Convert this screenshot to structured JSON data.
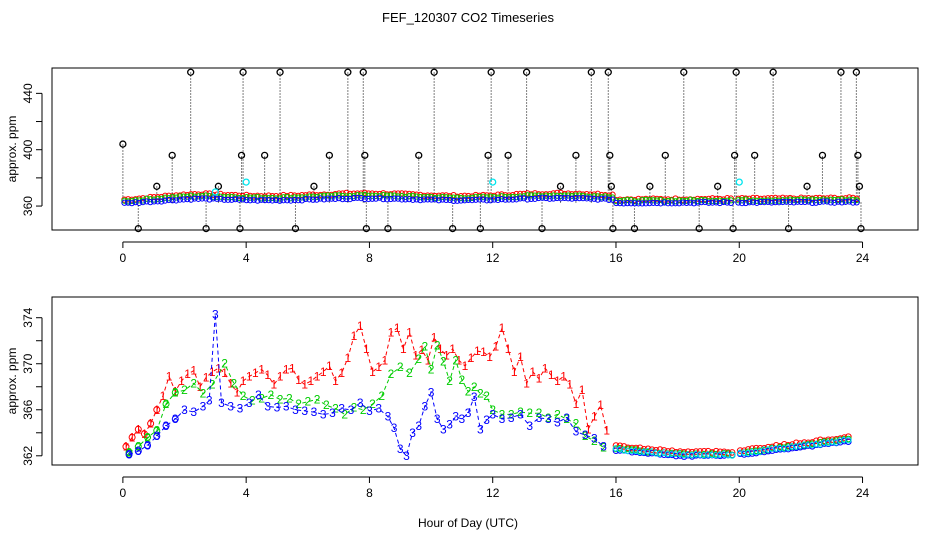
{
  "title": "FEF_120307  CO2 Timeseries",
  "xlabel": "Hour of Day (UTC)",
  "colors": {
    "black": "#000000",
    "red": "#ff0000",
    "green": "#00cd00",
    "blue": "#0000ff",
    "cyan": "#00e5ee"
  },
  "chart_data": [
    {
      "type": "scatter",
      "title": "FEF_120307  CO2 Timeseries",
      "ylabel": "approx. ppm",
      "xlim": [
        -2.3,
        25.8
      ],
      "ylim": [
        343,
        458
      ],
      "xticks": [
        0,
        4,
        8,
        12,
        16,
        20,
        24
      ],
      "yticks": [
        360,
        400,
        440
      ],
      "yticklabels": [
        "360",
        "400",
        "440"
      ],
      "ytick_minor": [
        380,
        420
      ],
      "series": [
        {
          "name": "red",
          "color": "#ff0000",
          "base": 364.5,
          "amp": 4.5,
          "noise": 1.2
        },
        {
          "name": "green",
          "color": "#00cd00",
          "base": 363.5,
          "amp": 4.0,
          "noise": 1.2
        },
        {
          "name": "blue",
          "color": "#0000ff",
          "base": 362.0,
          "amp": 3.5,
          "noise": 1.0
        }
      ],
      "spikes_black": [
        {
          "x": 0.0,
          "y": 404
        },
        {
          "x": 0.5,
          "y": 344
        },
        {
          "x": 1.1,
          "y": 374
        },
        {
          "x": 1.6,
          "y": 396
        },
        {
          "x": 2.2,
          "y": 455
        },
        {
          "x": 2.7,
          "y": 344
        },
        {
          "x": 3.1,
          "y": 374
        },
        {
          "x": 3.8,
          "y": 344
        },
        {
          "x": 3.85,
          "y": 396
        },
        {
          "x": 3.9,
          "y": 455
        },
        {
          "x": 4.6,
          "y": 396
        },
        {
          "x": 5.1,
          "y": 455
        },
        {
          "x": 5.6,
          "y": 344
        },
        {
          "x": 6.2,
          "y": 374
        },
        {
          "x": 6.7,
          "y": 396
        },
        {
          "x": 7.3,
          "y": 455
        },
        {
          "x": 7.8,
          "y": 455
        },
        {
          "x": 7.85,
          "y": 396
        },
        {
          "x": 7.9,
          "y": 344
        },
        {
          "x": 8.6,
          "y": 344
        },
        {
          "x": 9.6,
          "y": 396
        },
        {
          "x": 10.1,
          "y": 455
        },
        {
          "x": 10.7,
          "y": 344
        },
        {
          "x": 11.6,
          "y": 344
        },
        {
          "x": 11.85,
          "y": 396
        },
        {
          "x": 11.95,
          "y": 455
        },
        {
          "x": 12.5,
          "y": 396
        },
        {
          "x": 13.1,
          "y": 455
        },
        {
          "x": 13.6,
          "y": 344
        },
        {
          "x": 14.2,
          "y": 374
        },
        {
          "x": 14.7,
          "y": 396
        },
        {
          "x": 15.2,
          "y": 455
        },
        {
          "x": 15.75,
          "y": 455
        },
        {
          "x": 15.8,
          "y": 396
        },
        {
          "x": 15.85,
          "y": 374
        },
        {
          "x": 15.9,
          "y": 344
        },
        {
          "x": 16.6,
          "y": 344
        },
        {
          "x": 17.1,
          "y": 374
        },
        {
          "x": 17.6,
          "y": 396
        },
        {
          "x": 18.2,
          "y": 455
        },
        {
          "x": 18.7,
          "y": 344
        },
        {
          "x": 19.3,
          "y": 374
        },
        {
          "x": 19.8,
          "y": 344
        },
        {
          "x": 19.85,
          "y": 396
        },
        {
          "x": 19.9,
          "y": 455
        },
        {
          "x": 20.5,
          "y": 396
        },
        {
          "x": 21.1,
          "y": 455
        },
        {
          "x": 21.6,
          "y": 344
        },
        {
          "x": 22.2,
          "y": 374
        },
        {
          "x": 22.7,
          "y": 396
        },
        {
          "x": 23.3,
          "y": 455
        },
        {
          "x": 23.8,
          "y": 455
        },
        {
          "x": 23.85,
          "y": 396
        },
        {
          "x": 23.9,
          "y": 374
        },
        {
          "x": 23.95,
          "y": 344
        }
      ],
      "cyan_points": [
        {
          "x": 3.0,
          "y": 370
        },
        {
          "x": 4.0,
          "y": 377
        },
        {
          "x": 12.0,
          "y": 377
        },
        {
          "x": 20.0,
          "y": 377
        }
      ]
    },
    {
      "type": "line",
      "ylabel": "approx. ppm",
      "xlim": [
        -2.3,
        25.8
      ],
      "ylim": [
        361.2,
        375.8
      ],
      "xticks": [
        0,
        4,
        8,
        12,
        16,
        20,
        24
      ],
      "yticks": [
        362,
        366,
        370,
        374
      ],
      "yticklabels": [
        "362",
        "366",
        "370",
        "374"
      ],
      "ytick_minor": [
        364,
        368,
        372
      ],
      "series": [
        {
          "name": "1",
          "color": "#ff0000",
          "points": [
            [
              0.1,
              362.8
            ],
            [
              0.3,
              363.6
            ],
            [
              0.5,
              364.3
            ],
            [
              0.7,
              363.9
            ],
            [
              0.9,
              364.8
            ],
            [
              1.1,
              366.0
            ],
            [
              1.3,
              367.2
            ],
            [
              1.5,
              368.9
            ],
            [
              1.7,
              367.6
            ],
            [
              1.9,
              368.5
            ],
            [
              2.1,
              369.1
            ],
            [
              2.3,
              369.4
            ],
            [
              2.5,
              368.0
            ],
            [
              2.7,
              368.8
            ],
            [
              2.9,
              369.3
            ],
            [
              3.1,
              369.6
            ],
            [
              3.3,
              369.2
            ],
            [
              3.5,
              368.3
            ],
            [
              3.7,
              367.5
            ],
            [
              3.9,
              368.5
            ],
            [
              4.1,
              368.9
            ],
            [
              4.3,
              369.2
            ],
            [
              4.5,
              369.5
            ],
            [
              4.7,
              369.0
            ],
            [
              4.9,
              368.2
            ],
            [
              5.1,
              368.9
            ],
            [
              5.3,
              369.5
            ],
            [
              5.5,
              369.6
            ],
            [
              5.7,
              368.6
            ],
            [
              5.9,
              368.2
            ],
            [
              6.1,
              368.5
            ],
            [
              6.3,
              368.9
            ],
            [
              6.5,
              369.3
            ],
            [
              6.7,
              369.8
            ],
            [
              6.9,
              368.5
            ],
            [
              7.1,
              369.2
            ],
            [
              7.3,
              370.5
            ],
            [
              7.5,
              372.4
            ],
            [
              7.7,
              373.3
            ],
            [
              7.9,
              371.3
            ],
            [
              8.1,
              369.3
            ],
            [
              8.3,
              369.7
            ],
            [
              8.5,
              370.3
            ],
            [
              8.7,
              372.7
            ],
            [
              8.9,
              373.1
            ],
            [
              9.1,
              371.3
            ],
            [
              9.3,
              372.7
            ],
            [
              9.5,
              370.7
            ],
            [
              9.7,
              371.2
            ],
            [
              9.9,
              370.3
            ],
            [
              10.1,
              372.3
            ],
            [
              10.3,
              371.3
            ],
            [
              10.5,
              370.7
            ],
            [
              10.7,
              371.3
            ],
            [
              10.9,
              370.3
            ],
            [
              11.1,
              369.8
            ],
            [
              11.3,
              370.5
            ],
            [
              11.5,
              371.1
            ],
            [
              11.7,
              371.0
            ],
            [
              11.9,
              370.6
            ],
            [
              12.1,
              371.5
            ],
            [
              12.3,
              373.1
            ],
            [
              12.5,
              371.3
            ],
            [
              12.7,
              369.3
            ],
            [
              12.9,
              370.6
            ],
            [
              13.1,
              368.3
            ],
            [
              13.3,
              369.3
            ],
            [
              13.5,
              368.7
            ],
            [
              13.7,
              369.6
            ],
            [
              13.9,
              369.0
            ],
            [
              14.1,
              368.5
            ],
            [
              14.3,
              368.9
            ],
            [
              14.5,
              368.2
            ],
            [
              14.7,
              366.5
            ],
            [
              14.9,
              367.7
            ],
            [
              15.1,
              364.3
            ],
            [
              15.3,
              365.4
            ],
            [
              15.5,
              366.4
            ],
            [
              15.7,
              364.2
            ]
          ]
        },
        {
          "name": "2",
          "color": "#00cd00",
          "points": [
            [
              0.2,
              362.3
            ],
            [
              0.5,
              362.8
            ],
            [
              0.8,
              363.6
            ],
            [
              1.1,
              364.2
            ],
            [
              1.4,
              366.5
            ],
            [
              1.7,
              367.5
            ],
            [
              2.0,
              367.7
            ],
            [
              2.3,
              368.3
            ],
            [
              2.6,
              367.4
            ],
            [
              2.9,
              368.2
            ],
            [
              3.3,
              370.0
            ],
            [
              3.6,
              368.3
            ],
            [
              3.9,
              367.2
            ],
            [
              4.2,
              366.8
            ],
            [
              4.5,
              367.0
            ],
            [
              4.8,
              367.3
            ],
            [
              5.1,
              366.9
            ],
            [
              5.4,
              367.0
            ],
            [
              5.7,
              366.5
            ],
            [
              6.0,
              366.7
            ],
            [
              6.3,
              366.9
            ],
            [
              6.6,
              366.4
            ],
            [
              6.9,
              366.1
            ],
            [
              7.2,
              365.6
            ],
            [
              7.5,
              366.2
            ],
            [
              7.8,
              366.0
            ],
            [
              8.1,
              366.5
            ],
            [
              8.4,
              367.2
            ],
            [
              8.7,
              369.1
            ],
            [
              9.0,
              369.7
            ],
            [
              9.3,
              369.2
            ],
            [
              9.6,
              370.4
            ],
            [
              9.8,
              371.5
            ],
            [
              10.0,
              369.5
            ],
            [
              10.2,
              371.6
            ],
            [
              10.4,
              370.2
            ],
            [
              10.6,
              368.5
            ],
            [
              10.8,
              370.3
            ],
            [
              11.0,
              368.6
            ],
            [
              11.2,
              367.6
            ],
            [
              11.4,
              368.0
            ],
            [
              11.6,
              367.4
            ],
            [
              11.8,
              367.2
            ],
            [
              12.0,
              366.0
            ],
            [
              12.3,
              365.6
            ],
            [
              12.6,
              365.6
            ],
            [
              12.9,
              365.8
            ],
            [
              13.2,
              365.7
            ],
            [
              13.5,
              365.7
            ],
            [
              13.8,
              365.3
            ],
            [
              14.1,
              365.6
            ],
            [
              14.4,
              365.2
            ],
            [
              14.7,
              364.8
            ],
            [
              15.0,
              363.7
            ],
            [
              15.3,
              363.3
            ],
            [
              15.6,
              362.7
            ]
          ]
        },
        {
          "name": "3",
          "color": "#0000ff",
          "points": [
            [
              0.2,
              362.1
            ],
            [
              0.5,
              362.4
            ],
            [
              0.8,
              362.9
            ],
            [
              1.1,
              363.7
            ],
            [
              1.4,
              364.6
            ],
            [
              1.7,
              365.2
            ],
            [
              2.0,
              366.0
            ],
            [
              2.3,
              365.8
            ],
            [
              2.6,
              366.3
            ],
            [
              2.8,
              366.8
            ],
            [
              3.0,
              374.3
            ],
            [
              3.2,
              366.6
            ],
            [
              3.5,
              366.3
            ],
            [
              3.8,
              366.1
            ],
            [
              4.1,
              366.6
            ],
            [
              4.4,
              367.3
            ],
            [
              4.7,
              366.3
            ],
            [
              5.0,
              366.2
            ],
            [
              5.3,
              366.3
            ],
            [
              5.6,
              366.0
            ],
            [
              5.9,
              365.9
            ],
            [
              6.2,
              365.8
            ],
            [
              6.5,
              365.6
            ],
            [
              6.8,
              365.7
            ],
            [
              7.1,
              366.1
            ],
            [
              7.4,
              366.0
            ],
            [
              7.7,
              366.6
            ],
            [
              8.0,
              365.9
            ],
            [
              8.3,
              366.1
            ],
            [
              8.6,
              365.4
            ],
            [
              8.8,
              364.4
            ],
            [
              9.0,
              362.6
            ],
            [
              9.2,
              362.0
            ],
            [
              9.4,
              364.0
            ],
            [
              9.6,
              364.6
            ],
            [
              9.8,
              366.3
            ],
            [
              10.0,
              367.5
            ],
            [
              10.2,
              365.2
            ],
            [
              10.4,
              364.3
            ],
            [
              10.6,
              364.7
            ],
            [
              10.8,
              365.4
            ],
            [
              11.0,
              365.2
            ],
            [
              11.2,
              365.7
            ],
            [
              11.4,
              367.1
            ],
            [
              11.6,
              364.3
            ],
            [
              11.8,
              365.1
            ],
            [
              12.0,
              365.6
            ],
            [
              12.3,
              365.2
            ],
            [
              12.6,
              365.3
            ],
            [
              12.9,
              365.6
            ],
            [
              13.2,
              364.6
            ],
            [
              13.5,
              365.3
            ],
            [
              13.8,
              365.2
            ],
            [
              14.1,
              364.9
            ],
            [
              14.4,
              365.3
            ],
            [
              14.7,
              364.1
            ],
            [
              15.0,
              363.8
            ],
            [
              15.3,
              363.5
            ],
            [
              15.6,
              362.8
            ]
          ]
        }
      ],
      "overnight_circles": {
        "from": 16.0,
        "to": 23.6,
        "step": 0.13,
        "gap": [
          19.8,
          20.0
        ]
      }
    }
  ]
}
